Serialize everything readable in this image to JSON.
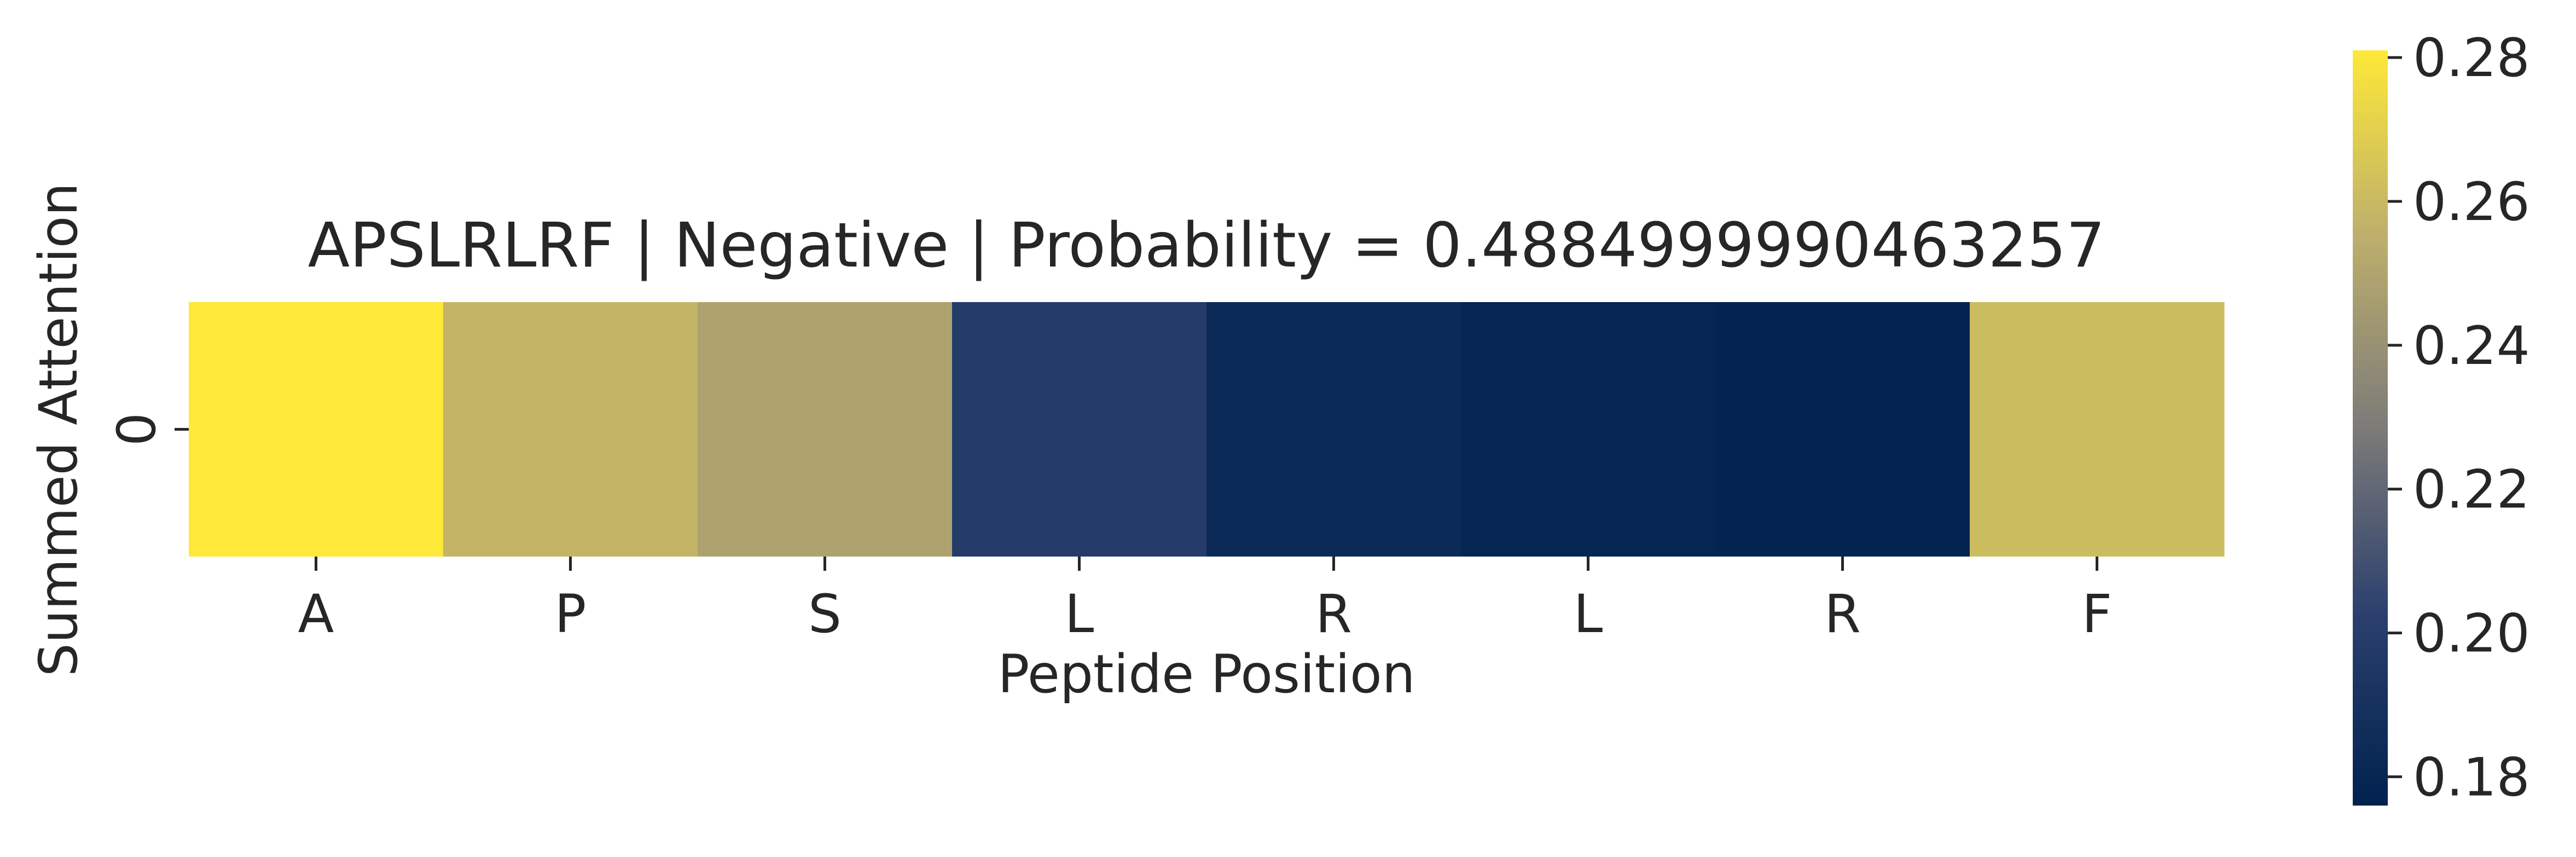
{
  "chart_data": {
    "type": "heatmap",
    "title": "APSLRLRF | Negative | Probability = 0.4884999990463257",
    "xlabel": "Peptide Position",
    "ylabel": "Summed Attention",
    "x_tick_labels": [
      "A",
      "P",
      "S",
      "L",
      "R",
      "L",
      "R",
      "F"
    ],
    "y_tick_labels": [
      "0"
    ],
    "values": [
      [
        0.281,
        0.258,
        0.249,
        0.199,
        0.183,
        0.179,
        0.178,
        0.261
      ]
    ],
    "colormap": "cividis",
    "colorbar": {
      "vmin": 0.176,
      "vmax": 0.281,
      "ticks": [
        0.18,
        0.2,
        0.22,
        0.24,
        0.26,
        0.28
      ],
      "tick_labels": [
        "0.18",
        "0.20",
        "0.22",
        "0.24",
        "0.26",
        "0.28"
      ]
    }
  }
}
